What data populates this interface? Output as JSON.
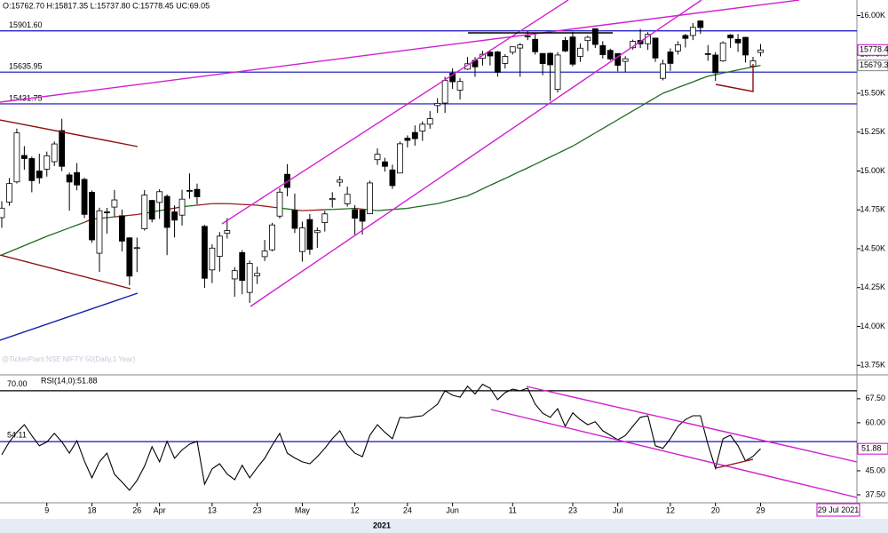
{
  "chart_data": [
    {
      "type": "candlestick",
      "header": "O:15762.70 H:15817.35 L:15737.80 C:15778.45 UC:69.05",
      "watermark": "@TickerPlant NSE NIFTY 50(Daily,1 Year)",
      "year": "2021",
      "date_tag": "29 Jul 2021",
      "categories": [
        null,
        null,
        null,
        null,
        null,
        null,
        "9",
        null,
        null,
        null,
        null,
        null,
        "18",
        null,
        null,
        null,
        null,
        null,
        "26",
        null,
        null,
        "Apr",
        null,
        null,
        null,
        null,
        null,
        null,
        "13",
        null,
        null,
        null,
        null,
        null,
        "23",
        null,
        null,
        null,
        null,
        null,
        "May",
        null,
        null,
        null,
        null,
        null,
        null,
        "12",
        null,
        null,
        null,
        null,
        null,
        null,
        "24",
        null,
        null,
        null,
        null,
        null,
        "Jun",
        null,
        null,
        null,
        null,
        null,
        null,
        null,
        "11",
        null,
        null,
        null,
        null,
        null,
        null,
        null,
        "23",
        null,
        null,
        null,
        null,
        null,
        "Jul",
        null,
        null,
        null,
        null,
        null,
        null,
        "12",
        null,
        null,
        null,
        null,
        null,
        "20",
        null,
        null,
        null,
        null,
        null,
        "29"
      ],
      "candles": [
        [
          14700,
          14806,
          14635,
          14761
        ],
        [
          14800,
          14955,
          14776,
          14919
        ],
        [
          14930,
          15273,
          14920,
          15245
        ],
        [
          15100,
          15160,
          15008,
          15080
        ],
        [
          15080,
          15093,
          14863,
          14938
        ],
        [
          15000,
          15111,
          14919,
          14956
        ],
        [
          15012,
          15125,
          14964,
          15098
        ],
        [
          15060,
          15190,
          15032,
          15174
        ],
        [
          15260,
          15336,
          14999,
          15030
        ],
        [
          14975,
          14991,
          14745,
          14929
        ],
        [
          14990,
          15051,
          14876,
          14910
        ],
        [
          14946,
          14957,
          14697,
          14721
        ],
        [
          14863,
          14875,
          14538,
          14557
        ],
        [
          14471,
          14764,
          14351,
          14744
        ],
        [
          14737,
          14763,
          14597,
          14736
        ],
        [
          14768,
          14878,
          14707,
          14814
        ],
        [
          14712,
          14752,
          14483,
          14549
        ],
        [
          14570,
          14575,
          14265,
          14324
        ],
        [
          14506,
          14572,
          14350,
          14507
        ],
        [
          14628,
          14877,
          14617,
          14845
        ],
        [
          14811,
          14813,
          14670,
          14690
        ],
        [
          14798,
          14883,
          14692,
          14867
        ],
        [
          14837,
          14849,
          14459,
          14637
        ],
        [
          14737,
          14779,
          14573,
          14684
        ],
        [
          14716,
          14879,
          14649,
          14819
        ],
        [
          14875,
          14984,
          14822,
          14873
        ],
        [
          14882,
          14919,
          14785,
          14834
        ],
        [
          14644,
          14653,
          14248,
          14310
        ],
        [
          14364,
          14528,
          14279,
          14504
        ],
        [
          14451,
          14607,
          14353,
          14581
        ],
        [
          14599,
          14697,
          14566,
          14617
        ],
        [
          14306,
          14382,
          14191,
          14359
        ],
        [
          14475,
          14491,
          14207,
          14296
        ],
        [
          14219,
          14424,
          14151,
          14406
        ],
        [
          14326,
          14384,
          14273,
          14341
        ],
        [
          14449,
          14557,
          14421,
          14485
        ],
        [
          14493,
          14667,
          14484,
          14653
        ],
        [
          14710,
          14890,
          14694,
          14864
        ],
        [
          14979,
          15044,
          14837,
          14894
        ],
        [
          14747,
          14855,
          14601,
          14631
        ],
        [
          14482,
          14674,
          14417,
          14634
        ],
        [
          14688,
          14723,
          14462,
          14496
        ],
        [
          14604,
          14637,
          14506,
          14617
        ],
        [
          14668,
          14743,
          14611,
          14724
        ],
        [
          14816,
          14864,
          14765,
          14823
        ],
        [
          14928,
          14967,
          14900,
          14942
        ],
        [
          14789,
          14900,
          14771,
          14850
        ],
        [
          14751,
          14781,
          14591,
          14696
        ],
        [
          14749,
          14749,
          14591,
          14677
        ],
        [
          14725,
          14938,
          14722,
          14923
        ],
        [
          15073,
          15145,
          15039,
          15108
        ],
        [
          15059,
          15085,
          14996,
          15030
        ],
        [
          15007,
          15041,
          14885,
          14906
        ],
        [
          14987,
          15189,
          14987,
          15175
        ],
        [
          15211,
          15229,
          15152,
          15197
        ],
        [
          15248,
          15293,
          15163,
          15208
        ],
        [
          15257,
          15319,
          15194,
          15301
        ],
        [
          15301,
          15385,
          15272,
          15337
        ],
        [
          15421,
          15469,
          15374,
          15435
        ],
        [
          15437,
          15606,
          15374,
          15582
        ],
        [
          15629,
          15661,
          15528,
          15574
        ],
        [
          15520,
          15597,
          15460,
          15576
        ],
        [
          15655,
          15733,
          15650,
          15690
        ],
        [
          15712,
          15733,
          15606,
          15670
        ],
        [
          15725,
          15773,
          15678,
          15751
        ],
        [
          15765,
          15778,
          15679,
          15740
        ],
        [
          15766,
          15773,
          15607,
          15635
        ],
        [
          15692,
          15752,
          15659,
          15737
        ],
        [
          15764,
          15800,
          15749,
          15799
        ],
        [
          15791,
          15823,
          15606,
          15811
        ],
        [
          15867,
          15901,
          15842,
          15869
        ],
        [
          15847,
          15880,
          15749,
          15767
        ],
        [
          15756,
          15759,
          15616,
          15691
        ],
        [
          15757,
          15763,
          15451,
          15683
        ],
        [
          15525,
          15765,
          15505,
          15746
        ],
        [
          15840,
          15862,
          15765,
          15772
        ],
        [
          15862,
          15895,
          15673,
          15687
        ],
        [
          15737,
          15821,
          15702,
          15790
        ],
        [
          15839,
          15870,
          15772,
          15860
        ],
        [
          15915,
          15915,
          15792,
          15814
        ],
        [
          15807,
          15835,
          15724,
          15748
        ],
        [
          15776,
          15787,
          15711,
          15721
        ],
        [
          15756,
          15756,
          15641,
          15680
        ],
        [
          15705,
          15738,
          15635,
          15722
        ],
        [
          15793,
          15845,
          15781,
          15834
        ],
        [
          15840,
          15914,
          15791,
          15818
        ],
        [
          15819,
          15893,
          15779,
          15879
        ],
        [
          15855,
          15856,
          15702,
          15727
        ],
        [
          15596,
          15716,
          15583,
          15689
        ],
        [
          15766,
          15789,
          15644,
          15692
        ],
        [
          15772,
          15835,
          15749,
          15812
        ],
        [
          15872,
          15882,
          15794,
          15853
        ],
        [
          15872,
          15952,
          15842,
          15924
        ],
        [
          15965,
          15970,
          15882,
          15923
        ],
        [
          15755,
          15810,
          15709,
          15752
        ],
        [
          15746,
          15765,
          15579,
          15632
        ],
        [
          15708,
          15834,
          15702,
          15824
        ],
        [
          15875,
          15880,
          15792,
          15856
        ],
        [
          15847,
          15881,
          15766,
          15824
        ],
        [
          15860,
          15863,
          15698,
          15746
        ],
        [
          15674,
          15734,
          15513,
          15709
        ],
        [
          15762.7,
          15817.35,
          15737.8,
          15778.45
        ]
      ],
      "up_color": "#ffffff",
      "down_color": "#000000",
      "ma": {
        "color": "#1e6b1e",
        "color_above": "#a01818",
        "values": [
          14460,
          14480,
          14500,
          14520,
          14540,
          14560,
          14580,
          14598,
          14616,
          14634,
          14652,
          14670,
          14690,
          14695,
          14700,
          14705,
          14710,
          14715,
          14720,
          14728,
          14736,
          14745,
          14753,
          14761,
          14770,
          14775,
          14780,
          14785,
          14790,
          14790,
          14790,
          14788,
          14785,
          14783,
          14780,
          14774,
          14768,
          14762,
          14756,
          14750,
          14745,
          14747,
          14749,
          14751,
          14753,
          14755,
          14757,
          14760,
          14755,
          14750,
          14745,
          14749,
          14753,
          14756,
          14760,
          14768,
          14775,
          14783,
          14790,
          14802,
          14815,
          14828,
          14840,
          14862,
          14885,
          14908,
          14930,
          14952,
          14975,
          14998,
          15020,
          15043,
          15067,
          15090,
          15113,
          15137,
          15160,
          15188,
          15217,
          15245,
          15273,
          15302,
          15330,
          15358,
          15387,
          15415,
          15443,
          15472,
          15500,
          15518,
          15537,
          15555,
          15573,
          15592,
          15610,
          15620,
          15630,
          15640,
          15650,
          15660,
          15670,
          15679.3
        ]
      },
      "levels": [
        {
          "value": 15901.6,
          "label": "15901.60"
        },
        {
          "value": 15635.95,
          "label": "15635.95"
        },
        {
          "value": 15431.75,
          "label": "15431.75"
        }
      ],
      "level_color": "#1010c0",
      "price_tags": [
        15778.4,
        15679.3
      ],
      "ylim": [
        13700,
        16100
      ],
      "yticks": [
        {
          "value": 16000,
          "label": "16.00K"
        },
        {
          "value": 15750,
          "label": "15.75K"
        },
        {
          "value": 15500,
          "label": "15.50K"
        },
        {
          "value": 15250,
          "label": "15.25K"
        },
        {
          "value": 15000,
          "label": "15.00K"
        },
        {
          "value": 14750,
          "label": "14.75K"
        },
        {
          "value": 14500,
          "label": "14.50K"
        },
        {
          "value": 14250,
          "label": "14.25K"
        },
        {
          "value": 14000,
          "label": "14.00K"
        },
        {
          "value": 13750,
          "label": "13.75K"
        }
      ]
    },
    {
      "type": "line",
      "title": "RSI(14,0):51.88",
      "color": "#000000",
      "values": [
        50,
        54,
        57,
        59.4,
        56,
        52.8,
        54,
        56.7,
        54,
        50.5,
        54.4,
        48,
        42.8,
        47.8,
        50.5,
        43.9,
        41.5,
        38.9,
        42,
        46.4,
        52.5,
        47.8,
        54.2,
        48.9,
        51.5,
        53.3,
        54.2,
        40.8,
        45.6,
        47.2,
        44,
        42.2,
        46.7,
        42.8,
        46,
        48.9,
        53,
        56.7,
        50.5,
        49,
        47.8,
        47.2,
        49.4,
        52,
        55,
        57.5,
        53,
        50.5,
        49.4,
        56.1,
        59.4,
        57,
        55,
        61.7,
        61.5,
        61.9,
        62.2,
        64,
        65.8,
        70,
        68.6,
        68,
        71.4,
        69,
        72,
        70.8,
        67.2,
        69.4,
        70.5,
        70,
        70.8,
        65.8,
        63,
        61.7,
        64.4,
        58.9,
        63.1,
        61,
        59.4,
        60.3,
        57.5,
        56.1,
        54.7,
        56,
        58.9,
        61.7,
        62.2,
        52.8,
        52,
        55,
        58.9,
        61,
        62.2,
        62.2,
        53.3,
        45.8,
        55,
        56.1,
        52.8,
        48.1,
        49.5,
        51.88
      ],
      "levels": [
        {
          "value": 70,
          "label": "70.00",
          "color": "#000000"
        },
        {
          "value": 54.11,
          "label": "54.11",
          "color": "#1010c0"
        }
      ],
      "tag": 51.88,
      "ylim": [
        35,
        74.4
      ],
      "yticks": [
        {
          "value": 67.5,
          "label": "67.50"
        },
        {
          "value": 60,
          "label": "60.00"
        },
        {
          "value": 52.5,
          "label": "52.50"
        },
        {
          "value": 45,
          "label": "45.00"
        },
        {
          "value": 37.5,
          "label": "37.50"
        }
      ]
    }
  ]
}
